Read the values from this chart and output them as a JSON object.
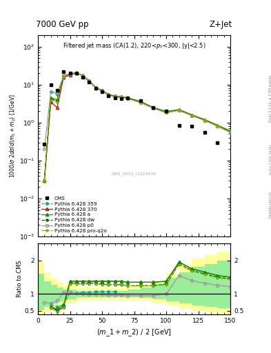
{
  "title_left": "7000 GeV pp",
  "title_right": "Z+Jet",
  "plot_title": "Filtered jet mass (CA(1.2), 220<p_{T}<300, |y|<2.5)",
  "xlabel": "(m_1 + m_2) / 2 [GeV]",
  "ylabel_top": "1000/σ 2dσ/d(m_1 + m_2) [1/GeV]",
  "ylabel_bot": "Ratio to CMS",
  "cms_label": "CMS_2013_I1224539",
  "right_label": "Rivet 3.1.10, ≥ 2.5M events",
  "arxiv_label": "[arXiv:1306.3436]",
  "mcplots_label": "mcplots.cern.ch",
  "xvals": [
    5,
    10,
    15,
    20,
    25,
    30,
    35,
    40,
    45,
    50,
    55,
    60,
    65,
    70,
    80,
    90,
    100,
    110,
    120,
    130,
    140,
    150
  ],
  "cms_data": [
    0.27,
    10.0,
    7.0,
    22.0,
    20.5,
    20.0,
    16.0,
    11.5,
    8.0,
    6.5,
    5.0,
    4.5,
    4.3,
    4.5,
    3.8,
    2.5,
    2.0,
    0.85,
    0.8,
    0.55,
    0.3,
    null
  ],
  "py359_data": [
    null,
    6.5,
    5.5,
    17.0,
    19.5,
    20.5,
    17.0,
    12.0,
    8.5,
    7.0,
    5.5,
    5.0,
    null,
    null,
    null,
    null,
    null,
    null,
    null,
    null,
    null,
    null
  ],
  "py370_data": [
    0.03,
    3.5,
    2.5,
    15.5,
    18.0,
    20.0,
    17.5,
    12.5,
    8.5,
    7.0,
    5.5,
    5.0,
    4.8,
    4.5,
    3.6,
    2.5,
    1.95,
    2.2,
    1.6,
    1.2,
    0.85,
    0.6
  ],
  "pya_data": [
    0.03,
    4.5,
    4.0,
    17.0,
    19.5,
    20.5,
    17.5,
    12.5,
    8.5,
    7.0,
    5.5,
    5.0,
    4.8,
    4.5,
    3.6,
    2.5,
    1.95,
    2.2,
    1.6,
    1.2,
    0.85,
    0.6
  ],
  "pydw_data": [
    0.03,
    4.2,
    3.8,
    16.5,
    19.0,
    20.2,
    17.2,
    12.2,
    8.3,
    6.8,
    5.3,
    4.8,
    4.6,
    4.3,
    3.4,
    2.4,
    1.85,
    2.1,
    1.55,
    1.15,
    0.82,
    0.57
  ],
  "pyp0_data": [
    0.2,
    6.5,
    6.0,
    17.0,
    19.0,
    20.0,
    17.0,
    12.0,
    8.2,
    6.8,
    5.3,
    4.8,
    4.6,
    4.3,
    3.4,
    2.4,
    1.85,
    2.1,
    1.52,
    1.14,
    0.8,
    0.55
  ],
  "pyq2o_data": [
    0.03,
    4.0,
    3.5,
    16.5,
    19.0,
    20.2,
    17.2,
    12.2,
    8.3,
    6.8,
    5.3,
    4.8,
    4.6,
    4.3,
    3.4,
    2.4,
    1.85,
    2.1,
    1.55,
    1.15,
    0.82,
    0.57
  ],
  "ratio_xvals": [
    5,
    10,
    15,
    20,
    25,
    30,
    35,
    40,
    45,
    50,
    55,
    60,
    65,
    70,
    80,
    90,
    100,
    110,
    120,
    130,
    140,
    150
  ],
  "ratio_py359": [
    null,
    0.68,
    0.62,
    0.68,
    1.04,
    1.03,
    1.04,
    1.04,
    1.06,
    1.07,
    1.07,
    1.07,
    null,
    null,
    null,
    null,
    null,
    null,
    null,
    null,
    null,
    null
  ],
  "ratio_py370": [
    null,
    0.62,
    0.52,
    0.62,
    1.38,
    1.38,
    1.38,
    1.38,
    1.38,
    1.38,
    1.38,
    1.38,
    1.38,
    1.35,
    1.35,
    1.35,
    1.38,
    1.95,
    1.75,
    1.65,
    1.55,
    1.5
  ],
  "ratio_pya": [
    null,
    0.62,
    0.55,
    0.68,
    1.38,
    1.38,
    1.38,
    1.38,
    1.38,
    1.38,
    1.38,
    1.38,
    1.38,
    1.35,
    1.35,
    1.35,
    1.38,
    1.95,
    1.75,
    1.65,
    1.55,
    1.5
  ],
  "ratio_pydw": [
    null,
    0.6,
    0.5,
    0.62,
    1.32,
    1.32,
    1.32,
    1.32,
    1.32,
    1.3,
    1.28,
    1.28,
    1.28,
    1.25,
    1.25,
    1.25,
    1.3,
    1.9,
    1.7,
    1.6,
    1.5,
    1.45
  ],
  "ratio_pyp0": [
    0.75,
    0.73,
    0.8,
    1.05,
    1.04,
    1.02,
    1.0,
    0.98,
    0.98,
    0.98,
    0.96,
    0.96,
    0.96,
    0.95,
    0.95,
    0.95,
    1.0,
    1.55,
    1.4,
    1.32,
    1.26,
    1.22
  ],
  "ratio_pyq2o": [
    null,
    0.58,
    0.48,
    0.6,
    1.3,
    1.3,
    1.3,
    1.3,
    1.3,
    1.28,
    1.27,
    1.27,
    1.27,
    1.24,
    1.24,
    1.24,
    1.28,
    1.88,
    1.68,
    1.58,
    1.48,
    1.43
  ],
  "band_yellow_x": [
    0,
    5,
    5,
    10,
    10,
    15,
    15,
    20,
    20,
    30,
    30,
    40,
    40,
    50,
    50,
    60,
    60,
    70,
    70,
    80,
    80,
    90,
    90,
    100,
    100,
    110,
    110,
    120,
    120,
    130,
    130,
    140,
    140,
    150
  ],
  "band_yellow_lo": [
    0.3,
    0.3,
    0.45,
    0.45,
    0.58,
    0.58,
    0.65,
    0.65,
    0.75,
    0.75,
    0.8,
    0.8,
    0.82,
    0.82,
    0.82,
    0.82,
    0.82,
    0.82,
    0.82,
    0.82,
    0.8,
    0.8,
    0.75,
    0.75,
    0.65,
    0.65,
    0.55,
    0.55,
    0.5,
    0.5,
    0.45,
    0.45,
    0.42,
    0.42
  ],
  "band_yellow_hi": [
    1.95,
    1.95,
    1.65,
    1.65,
    1.45,
    1.45,
    1.35,
    1.35,
    1.25,
    1.25,
    1.2,
    1.2,
    1.18,
    1.18,
    1.18,
    1.18,
    1.18,
    1.18,
    1.22,
    1.22,
    1.28,
    1.28,
    1.4,
    1.4,
    1.6,
    1.6,
    1.85,
    1.85,
    2.05,
    2.05,
    2.15,
    2.15,
    2.25,
    2.25
  ],
  "band_green_x": [
    0,
    5,
    5,
    10,
    10,
    15,
    15,
    20,
    20,
    30,
    30,
    40,
    40,
    50,
    50,
    60,
    60,
    70,
    70,
    80,
    80,
    90,
    90,
    100,
    100,
    110,
    110,
    120,
    120,
    130,
    130,
    140,
    140,
    150
  ],
  "band_green_lo": [
    0.52,
    0.52,
    0.62,
    0.62,
    0.7,
    0.7,
    0.78,
    0.78,
    0.85,
    0.85,
    0.9,
    0.9,
    0.91,
    0.91,
    0.91,
    0.91,
    0.91,
    0.91,
    0.91,
    0.91,
    0.89,
    0.89,
    0.85,
    0.85,
    0.78,
    0.78,
    0.72,
    0.72,
    0.66,
    0.66,
    0.62,
    0.62,
    0.58,
    0.58
  ],
  "band_green_hi": [
    1.6,
    1.6,
    1.38,
    1.38,
    1.28,
    1.28,
    1.2,
    1.2,
    1.14,
    1.14,
    1.1,
    1.1,
    1.1,
    1.1,
    1.1,
    1.1,
    1.1,
    1.1,
    1.14,
    1.14,
    1.2,
    1.2,
    1.3,
    1.3,
    1.48,
    1.48,
    1.65,
    1.65,
    1.8,
    1.8,
    1.9,
    1.9,
    2.0,
    2.0
  ],
  "color_359": "#00aaaa",
  "color_370": "#cc0000",
  "color_a": "#009900",
  "color_dw": "#006600",
  "color_p0": "#999999",
  "color_q2o": "#88aa00",
  "color_yellow": "#ffff99",
  "color_green": "#99ee99"
}
